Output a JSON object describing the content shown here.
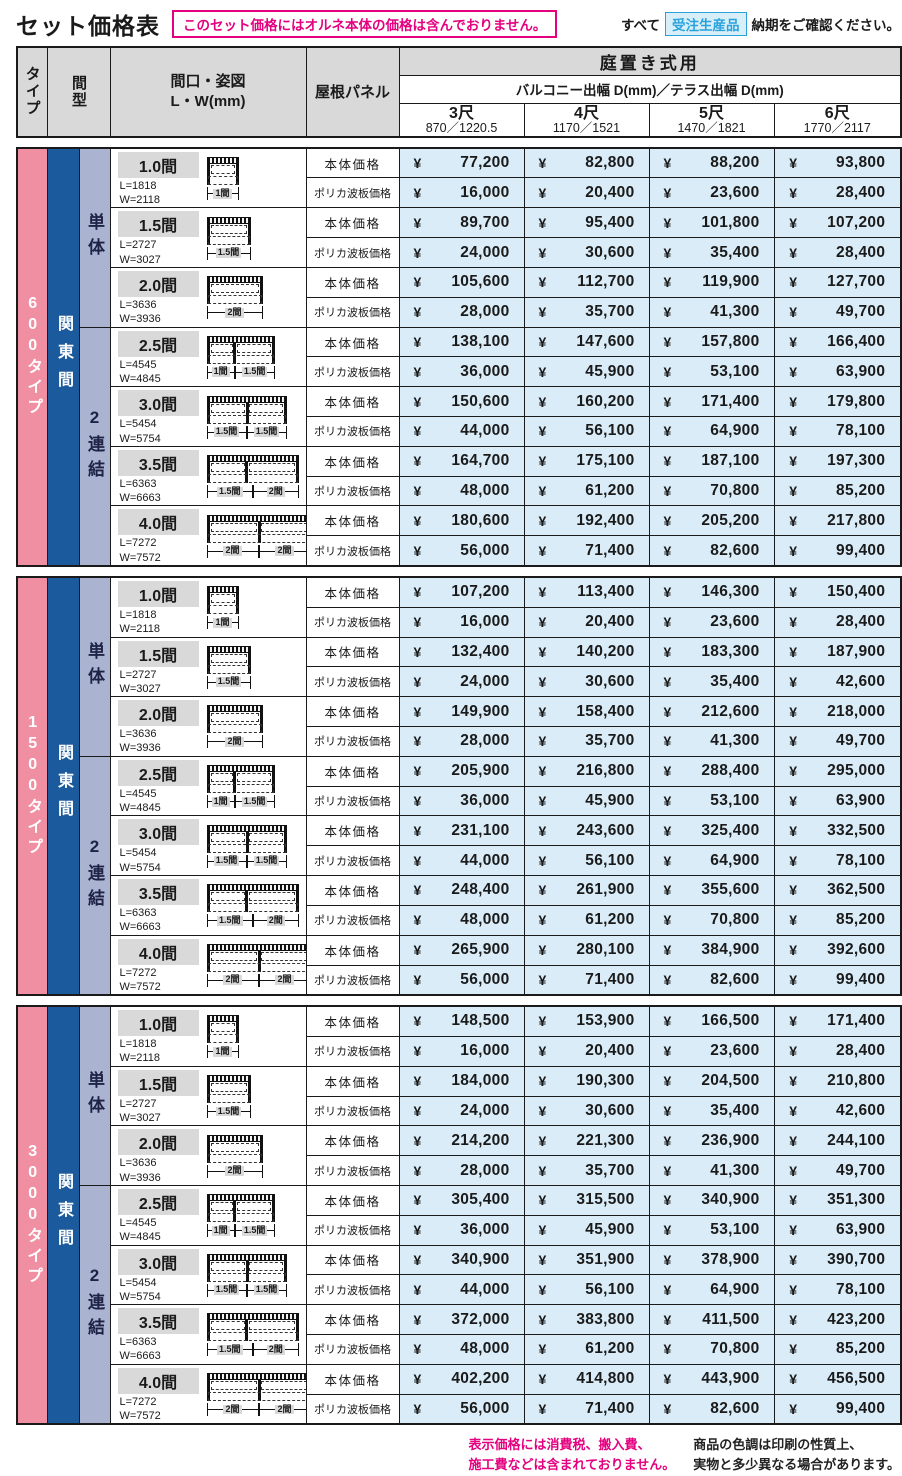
{
  "colors": {
    "type_pink": "#f08fa2",
    "ken_blue": "#1b5a9c",
    "group_purple": "#aab3cf",
    "header_gray": "#d9d9d9",
    "price_blue": "#d9ecf8",
    "magenta": "#e4007f",
    "badge_blue": "#2aa3dc",
    "badge_bg": "#d8effa"
  },
  "header": {
    "title": "セット価格表",
    "notice": "このセット価格にはオルネ本体の価格は含んでおりません。",
    "order_prefix": "すべて",
    "order_badge": "受注生産品",
    "order_suffix": "納期をご確認ください。"
  },
  "table_header": {
    "col_type": "タイプ",
    "col_span": "間型",
    "col_facade": "間口・姿図\nL・W(mm)",
    "col_roof": "屋根パネル",
    "usage": "庭置き式用",
    "depth": "バルコニー出幅 D(mm)／テラス出幅 D(mm)",
    "sizes": [
      {
        "size": "3尺",
        "dims": "870／1220.5"
      },
      {
        "size": "4尺",
        "dims": "1170／1521"
      },
      {
        "size": "5尺",
        "dims": "1470／1821"
      },
      {
        "size": "6尺",
        "dims": "1770／2117"
      }
    ]
  },
  "price_row_labels": {
    "body": "本体価格",
    "poly": "ポリカ波板価格"
  },
  "currency": "¥",
  "sections": [
    {
      "type_label": "600タイプ",
      "ken_label": "関東間",
      "subgroups": [
        {
          "label": "単体",
          "rows": [
            {
              "span": "1.0間",
              "l": "L=1818",
              "w": "W=2118",
              "bays": [
                {
                  "label": "1間",
                  "value": 1
                }
              ],
              "body_prices": [
                "77,200",
                "82,800",
                "88,200",
                "93,800"
              ],
              "poly_prices": [
                "16,000",
                "20,400",
                "23,600",
                "28,400"
              ]
            },
            {
              "span": "1.5間",
              "l": "L=2727",
              "w": "W=3027",
              "bays": [
                {
                  "label": "1.5間",
                  "value": 1.5
                }
              ],
              "body_prices": [
                "89,700",
                "95,400",
                "101,800",
                "107,200"
              ],
              "poly_prices": [
                "24,000",
                "30,600",
                "35,400",
                "28,400"
              ]
            },
            {
              "span": "2.0間",
              "l": "L=3636",
              "w": "W=3936",
              "bays": [
                {
                  "label": "2間",
                  "value": 2
                }
              ],
              "body_prices": [
                "105,600",
                "112,700",
                "119,900",
                "127,700"
              ],
              "poly_prices": [
                "28,000",
                "35,700",
                "41,300",
                "49,700"
              ]
            }
          ]
        },
        {
          "label": "2連結",
          "rows": [
            {
              "span": "2.5間",
              "l": "L=4545",
              "w": "W=4845",
              "bays": [
                {
                  "label": "1間",
                  "value": 1
                },
                {
                  "label": "1.5間",
                  "value": 1.5
                }
              ],
              "body_prices": [
                "138,100",
                "147,600",
                "157,800",
                "166,400"
              ],
              "poly_prices": [
                "36,000",
                "45,900",
                "53,100",
                "63,900"
              ]
            },
            {
              "span": "3.0間",
              "l": "L=5454",
              "w": "W=5754",
              "bays": [
                {
                  "label": "1.5間",
                  "value": 1.5
                },
                {
                  "label": "1.5間",
                  "value": 1.5
                }
              ],
              "body_prices": [
                "150,600",
                "160,200",
                "171,400",
                "179,800"
              ],
              "poly_prices": [
                "44,000",
                "56,100",
                "64,900",
                "78,100"
              ]
            },
            {
              "span": "3.5間",
              "l": "L=6363",
              "w": "W=6663",
              "bays": [
                {
                  "label": "1.5間",
                  "value": 1.5
                },
                {
                  "label": "2間",
                  "value": 2
                }
              ],
              "body_prices": [
                "164,700",
                "175,100",
                "187,100",
                "197,300"
              ],
              "poly_prices": [
                "48,000",
                "61,200",
                "70,800",
                "85,200"
              ]
            },
            {
              "span": "4.0間",
              "l": "L=7272",
              "w": "W=7572",
              "bays": [
                {
                  "label": "2間",
                  "value": 2
                },
                {
                  "label": "2間",
                  "value": 2
                }
              ],
              "body_prices": [
                "180,600",
                "192,400",
                "205,200",
                "217,800"
              ],
              "poly_prices": [
                "56,000",
                "71,400",
                "82,600",
                "99,400"
              ]
            }
          ]
        }
      ]
    },
    {
      "type_label": "1500タイプ",
      "ken_label": "関東間",
      "subgroups": [
        {
          "label": "単体",
          "rows": [
            {
              "span": "1.0間",
              "l": "L=1818",
              "w": "W=2118",
              "bays": [
                {
                  "label": "1間",
                  "value": 1
                }
              ],
              "body_prices": [
                "107,200",
                "113,400",
                "146,300",
                "150,400"
              ],
              "poly_prices": [
                "16,000",
                "20,400",
                "23,600",
                "28,400"
              ]
            },
            {
              "span": "1.5間",
              "l": "L=2727",
              "w": "W=3027",
              "bays": [
                {
                  "label": "1.5間",
                  "value": 1.5
                }
              ],
              "body_prices": [
                "132,400",
                "140,200",
                "183,300",
                "187,900"
              ],
              "poly_prices": [
                "24,000",
                "30,600",
                "35,400",
                "42,600"
              ]
            },
            {
              "span": "2.0間",
              "l": "L=3636",
              "w": "W=3936",
              "bays": [
                {
                  "label": "2間",
                  "value": 2
                }
              ],
              "body_prices": [
                "149,900",
                "158,400",
                "212,600",
                "218,000"
              ],
              "poly_prices": [
                "28,000",
                "35,700",
                "41,300",
                "49,700"
              ]
            }
          ]
        },
        {
          "label": "2連結",
          "rows": [
            {
              "span": "2.5間",
              "l": "L=4545",
              "w": "W=4845",
              "bays": [
                {
                  "label": "1間",
                  "value": 1
                },
                {
                  "label": "1.5間",
                  "value": 1.5
                }
              ],
              "body_prices": [
                "205,900",
                "216,800",
                "288,400",
                "295,000"
              ],
              "poly_prices": [
                "36,000",
                "45,900",
                "53,100",
                "63,900"
              ]
            },
            {
              "span": "3.0間",
              "l": "L=5454",
              "w": "W=5754",
              "bays": [
                {
                  "label": "1.5間",
                  "value": 1.5
                },
                {
                  "label": "1.5間",
                  "value": 1.5
                }
              ],
              "body_prices": [
                "231,100",
                "243,600",
                "325,400",
                "332,500"
              ],
              "poly_prices": [
                "44,000",
                "56,100",
                "64,900",
                "78,100"
              ]
            },
            {
              "span": "3.5間",
              "l": "L=6363",
              "w": "W=6663",
              "bays": [
                {
                  "label": "1.5間",
                  "value": 1.5
                },
                {
                  "label": "2間",
                  "value": 2
                }
              ],
              "body_prices": [
                "248,400",
                "261,900",
                "355,600",
                "362,500"
              ],
              "poly_prices": [
                "48,000",
                "61,200",
                "70,800",
                "85,200"
              ]
            },
            {
              "span": "4.0間",
              "l": "L=7272",
              "w": "W=7572",
              "bays": [
                {
                  "label": "2間",
                  "value": 2
                },
                {
                  "label": "2間",
                  "value": 2
                }
              ],
              "body_prices": [
                "265,900",
                "280,100",
                "384,900",
                "392,600"
              ],
              "poly_prices": [
                "56,000",
                "71,400",
                "82,600",
                "99,400"
              ]
            }
          ]
        }
      ]
    },
    {
      "type_label": "3000タイプ",
      "ken_label": "関東間",
      "subgroups": [
        {
          "label": "単体",
          "rows": [
            {
              "span": "1.0間",
              "l": "L=1818",
              "w": "W=2118",
              "bays": [
                {
                  "label": "1間",
                  "value": 1
                }
              ],
              "body_prices": [
                "148,500",
                "153,900",
                "166,500",
                "171,400"
              ],
              "poly_prices": [
                "16,000",
                "20,400",
                "23,600",
                "28,400"
              ]
            },
            {
              "span": "1.5間",
              "l": "L=2727",
              "w": "W=3027",
              "bays": [
                {
                  "label": "1.5間",
                  "value": 1.5
                }
              ],
              "body_prices": [
                "184,000",
                "190,300",
                "204,500",
                "210,800"
              ],
              "poly_prices": [
                "24,000",
                "30,600",
                "35,400",
                "42,600"
              ]
            },
            {
              "span": "2.0間",
              "l": "L=3636",
              "w": "W=3936",
              "bays": [
                {
                  "label": "2間",
                  "value": 2
                }
              ],
              "body_prices": [
                "214,200",
                "221,300",
                "236,900",
                "244,100"
              ],
              "poly_prices": [
                "28,000",
                "35,700",
                "41,300",
                "49,700"
              ]
            }
          ]
        },
        {
          "label": "2連結",
          "rows": [
            {
              "span": "2.5間",
              "l": "L=4545",
              "w": "W=4845",
              "bays": [
                {
                  "label": "1間",
                  "value": 1
                },
                {
                  "label": "1.5間",
                  "value": 1.5
                }
              ],
              "body_prices": [
                "305,400",
                "315,500",
                "340,900",
                "351,300"
              ],
              "poly_prices": [
                "36,000",
                "45,900",
                "53,100",
                "63,900"
              ]
            },
            {
              "span": "3.0間",
              "l": "L=5454",
              "w": "W=5754",
              "bays": [
                {
                  "label": "1.5間",
                  "value": 1.5
                },
                {
                  "label": "1.5間",
                  "value": 1.5
                }
              ],
              "body_prices": [
                "340,900",
                "351,900",
                "378,900",
                "390,700"
              ],
              "poly_prices": [
                "44,000",
                "56,100",
                "64,900",
                "78,100"
              ]
            },
            {
              "span": "3.5間",
              "l": "L=6363",
              "w": "W=6663",
              "bays": [
                {
                  "label": "1.5間",
                  "value": 1.5
                },
                {
                  "label": "2間",
                  "value": 2
                }
              ],
              "body_prices": [
                "372,000",
                "383,800",
                "411,500",
                "423,200"
              ],
              "poly_prices": [
                "48,000",
                "61,200",
                "70,800",
                "85,200"
              ]
            },
            {
              "span": "4.0間",
              "l": "L=7272",
              "w": "W=7572",
              "bays": [
                {
                  "label": "2間",
                  "value": 2
                },
                {
                  "label": "2間",
                  "value": 2
                }
              ],
              "body_prices": [
                "402,200",
                "414,800",
                "443,900",
                "456,500"
              ],
              "poly_prices": [
                "56,000",
                "71,400",
                "82,600",
                "99,400"
              ]
            }
          ]
        }
      ]
    }
  ],
  "footer": {
    "notes_pink": [
      "表示価格には消費税、搬入費、",
      "施工費などは含まれておりません。"
    ],
    "notes_black": [
      "商品の色調は印刷の性質上、",
      "実物と多少異なる場合があります。"
    ]
  }
}
